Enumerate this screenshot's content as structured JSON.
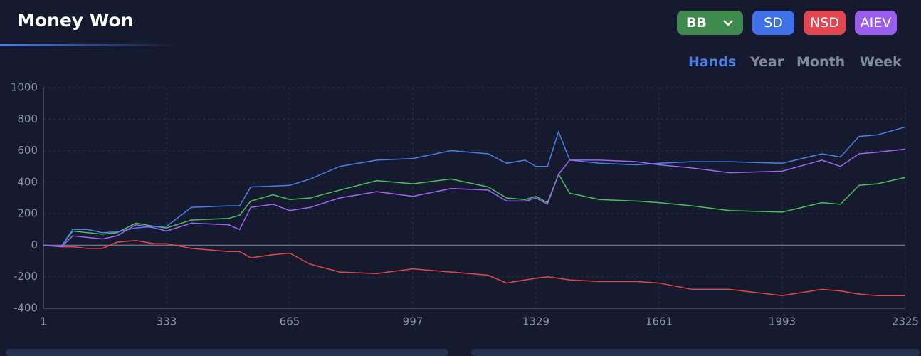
{
  "header": {
    "title": "Money Won",
    "ranges": [
      {
        "label": "Hands",
        "selected": true
      },
      {
        "label": "Year",
        "selected": false
      },
      {
        "label": "Month",
        "selected": false
      },
      {
        "label": "Week",
        "selected": false
      }
    ]
  },
  "chart_data": {
    "type": "line",
    "x": [
      1,
      50,
      80,
      120,
      160,
      200,
      250,
      300,
      333,
      400,
      500,
      530,
      560,
      620,
      665,
      720,
      800,
      900,
      997,
      1100,
      1200,
      1250,
      1300,
      1329,
      1360,
      1390,
      1420,
      1500,
      1600,
      1661,
      1750,
      1850,
      1993,
      2100,
      2150,
      2200,
      2250,
      2325
    ],
    "series": [
      {
        "name": "BB",
        "color": "#3d8a4c",
        "line_color": "#4cbf5a",
        "values": [
          0,
          -5,
          90,
          80,
          70,
          80,
          140,
          120,
          110,
          160,
          170,
          190,
          280,
          320,
          290,
          300,
          350,
          410,
          390,
          420,
          370,
          300,
          290,
          310,
          270,
          450,
          330,
          290,
          280,
          270,
          250,
          220,
          210,
          270,
          260,
          380,
          390,
          430
        ]
      },
      {
        "name": "SD",
        "color": "#3f72e8",
        "line_color": "#4a7fe8",
        "values": [
          0,
          -5,
          100,
          100,
          80,
          85,
          110,
          120,
          120,
          240,
          250,
          250,
          370,
          375,
          380,
          420,
          500,
          540,
          550,
          600,
          580,
          520,
          540,
          500,
          500,
          720,
          540,
          520,
          510,
          520,
          530,
          530,
          520,
          580,
          560,
          690,
          700,
          750
        ]
      },
      {
        "name": "NSD",
        "color": "#e4464f",
        "line_color": "#e2474d",
        "values": [
          0,
          -10,
          -10,
          -20,
          -20,
          20,
          30,
          10,
          10,
          -20,
          -40,
          -40,
          -80,
          -60,
          -50,
          -120,
          -170,
          -180,
          -150,
          -170,
          -190,
          -240,
          -220,
          -210,
          -200,
          -210,
          -220,
          -230,
          -230,
          -240,
          -280,
          -280,
          -320,
          -280,
          -290,
          -310,
          -320,
          -320
        ]
      },
      {
        "name": "AIEV",
        "color": "#9b5cf0",
        "line_color": "#a066f2",
        "values": [
          0,
          -10,
          60,
          50,
          40,
          60,
          130,
          110,
          90,
          140,
          130,
          100,
          240,
          260,
          220,
          240,
          300,
          340,
          310,
          360,
          350,
          280,
          280,
          300,
          260,
          450,
          540,
          540,
          530,
          510,
          490,
          460,
          470,
          540,
          500,
          580,
          590,
          610
        ]
      }
    ],
    "xlim": [
      1,
      2325
    ],
    "xticks": [
      1,
      333,
      665,
      997,
      1329,
      1661,
      1993,
      2325
    ],
    "ylim": [
      -400,
      1000
    ],
    "yticks": [
      -400,
      -200,
      0,
      200,
      400,
      600,
      800,
      1000
    ],
    "grid": true
  }
}
